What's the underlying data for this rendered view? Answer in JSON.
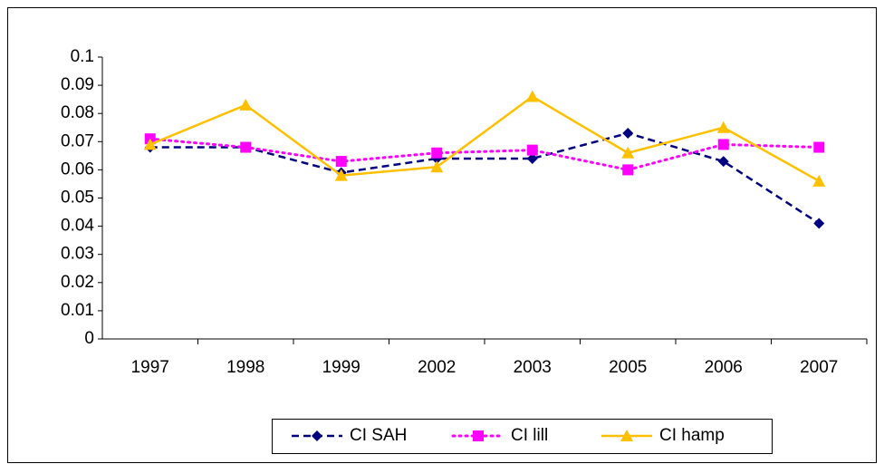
{
  "chart_data": {
    "type": "line",
    "categories": [
      "1997",
      "1998",
      "1999",
      "2002",
      "2003",
      "2005",
      "2006",
      "2007"
    ],
    "series": [
      {
        "name": "CI SAH",
        "color": "#000080",
        "line_style": "dashed",
        "marker": "diamond",
        "values": [
          0.068,
          0.068,
          0.059,
          0.064,
          0.064,
          0.073,
          0.063,
          0.041
        ]
      },
      {
        "name": "CI lill",
        "color": "#ff00ff",
        "line_style": "dotted",
        "marker": "square",
        "values": [
          0.071,
          0.068,
          0.063,
          0.066,
          0.067,
          0.06,
          0.069,
          0.068
        ]
      },
      {
        "name": "CI hamp",
        "color": "#ffc000",
        "line_style": "solid",
        "marker": "triangle",
        "values": [
          0.069,
          0.083,
          0.058,
          0.061,
          0.086,
          0.066,
          0.075,
          0.056
        ]
      }
    ],
    "ylim": [
      0,
      0.1
    ],
    "yticks": [
      0,
      0.01,
      0.02,
      0.03,
      0.04,
      0.05,
      0.06,
      0.07,
      0.08,
      0.09,
      0.1
    ],
    "grid": false,
    "legend": "bottom"
  }
}
